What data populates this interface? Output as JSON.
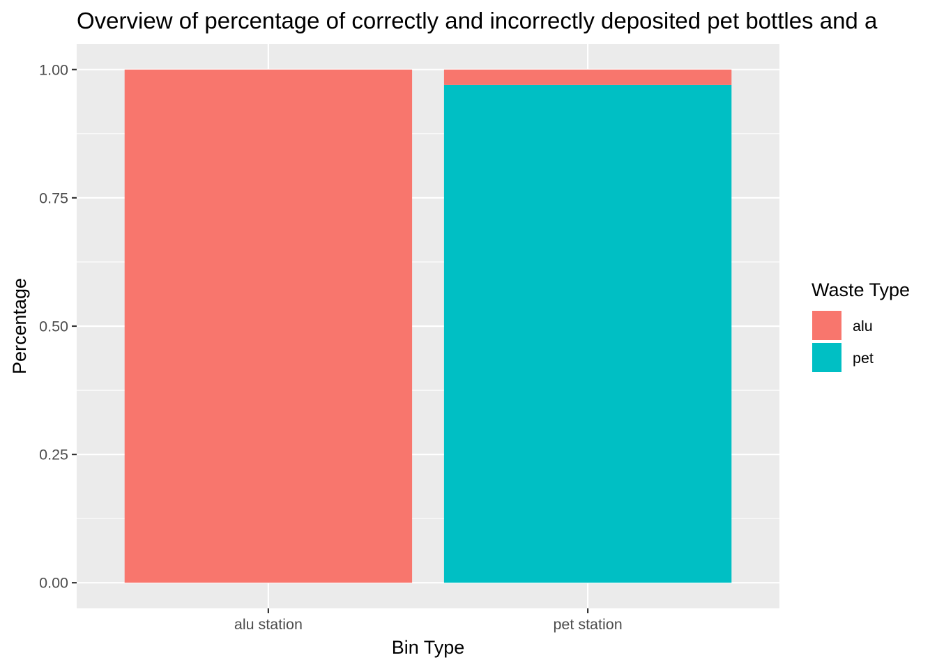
{
  "chart_data": {
    "type": "bar",
    "stacked": true,
    "title": "Overview of percentage of correctly and incorrectly deposited pet bottles and a",
    "xlabel": "Bin Type",
    "ylabel": "Percentage",
    "categories": [
      "alu station",
      "pet station"
    ],
    "series": [
      {
        "name": "pet",
        "values": [
          0,
          0.97
        ],
        "color": "#00BFC4"
      },
      {
        "name": "alu",
        "values": [
          1.0,
          0.03
        ],
        "color": "#F8766D"
      }
    ],
    "ylim": [
      -0.05,
      1.05
    ],
    "yticks": [
      0,
      0.25,
      0.5,
      0.75,
      1.0
    ],
    "ytick_labels": [
      "0.00",
      "0.25",
      "0.50",
      "0.75",
      "1.00"
    ],
    "grid": true,
    "panel_background": "#EBEBEB",
    "legend": {
      "title": "Waste Type",
      "position": "right",
      "entries": [
        {
          "label": "alu",
          "color": "#F8766D"
        },
        {
          "label": "pet",
          "color": "#00BFC4"
        }
      ]
    }
  }
}
